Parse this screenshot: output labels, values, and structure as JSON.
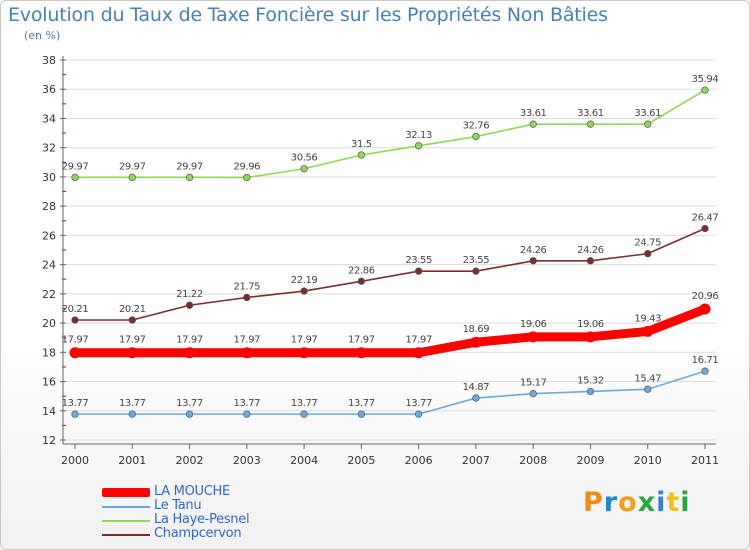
{
  "header": {
    "title": "Evolution du Taux de Taxe Foncière sur les Propriétés Non Bâties",
    "unit": "(en %)"
  },
  "logo": {
    "text": "Proxiti",
    "colors": [
      "#f28a1a",
      "#1e88c8",
      "#f0a020",
      "#2aa640",
      "#3b7fd0",
      "#f2c21a",
      "#2aa640"
    ]
  },
  "chart_data": {
    "type": "line",
    "title": "Evolution du Taux de Taxe Foncière sur les Propriétés Non Bâties",
    "subtitle": "(en %)",
    "x": [
      "2000",
      "2001",
      "2002",
      "2003",
      "2004",
      "2005",
      "2006",
      "2007",
      "2008",
      "2009",
      "2010",
      "2011"
    ],
    "ylim": [
      12,
      38
    ],
    "yticks": [
      12,
      14,
      16,
      18,
      20,
      22,
      24,
      26,
      28,
      30,
      32,
      34,
      36,
      38
    ],
    "grid": "horizontal",
    "legend_position": "bottom-left",
    "series": [
      {
        "name": "LA MOUCHE",
        "color": "#ff0000",
        "emphasis": true,
        "values": [
          17.97,
          17.97,
          17.97,
          17.97,
          17.97,
          17.97,
          17.97,
          18.69,
          19.06,
          19.06,
          19.43,
          20.96
        ],
        "labels": [
          "17.97",
          "17.97",
          "17.97",
          "17.97",
          "17.97",
          "17.97",
          "17.97",
          "18.69",
          "19.06",
          "19.06",
          "19.43",
          "20.96"
        ]
      },
      {
        "name": "Le Tanu",
        "color": "#6fa8dc",
        "values": [
          13.77,
          13.77,
          13.77,
          13.77,
          13.77,
          13.77,
          13.77,
          14.87,
          15.17,
          15.32,
          15.47,
          16.71
        ],
        "labels": [
          "13.77",
          "13.77",
          "13.77",
          "13.77",
          "13.77",
          "13.77",
          "13.77",
          "14.87",
          "15.17",
          "15.32",
          "15.47",
          "16.71"
        ]
      },
      {
        "name": "La Haye-Pesnel",
        "color": "#8fd85a",
        "values": [
          29.97,
          29.97,
          29.97,
          29.96,
          30.56,
          31.5,
          32.13,
          32.76,
          33.61,
          33.61,
          33.61,
          35.94
        ],
        "labels": [
          "29.97",
          "29.97",
          "29.97",
          "29.96",
          "30.56",
          "31.5",
          "32.13",
          "32.76",
          "33.61",
          "33.61",
          "33.61",
          "35.94"
        ]
      },
      {
        "name": "Champcervon",
        "color": "#7b2e2e",
        "values": [
          20.21,
          20.21,
          21.22,
          21.75,
          22.19,
          22.86,
          23.55,
          23.55,
          24.26,
          24.26,
          24.75,
          26.47
        ],
        "labels": [
          "20.21",
          "20.21",
          "21.22",
          "21.75",
          "22.19",
          "22.86",
          "23.55",
          "23.55",
          "24.26",
          "24.26",
          "24.75",
          "26.47"
        ]
      }
    ]
  }
}
